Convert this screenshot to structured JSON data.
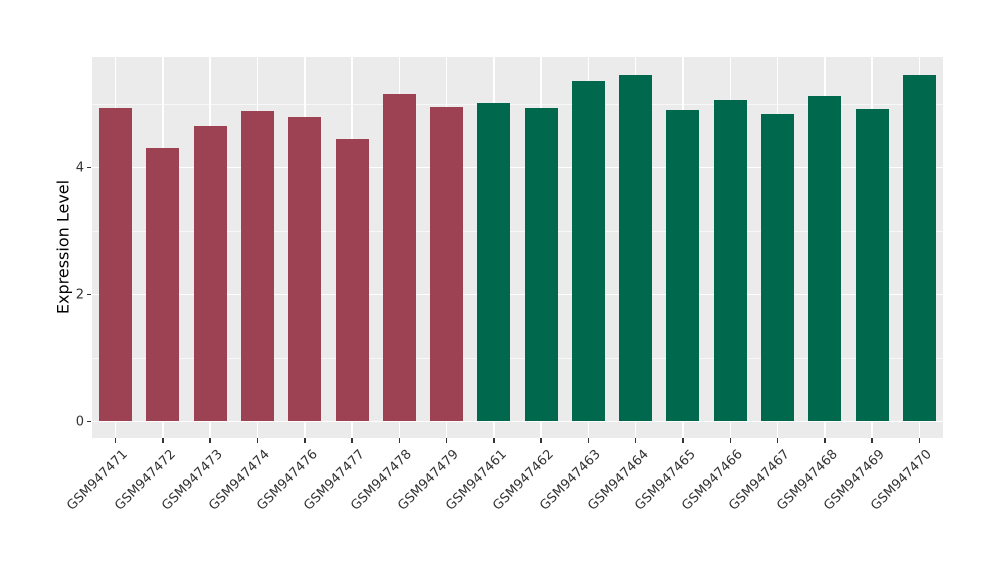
{
  "chart_data": {
    "type": "bar",
    "title": "",
    "xlabel": "",
    "ylabel": "Expression Level",
    "categories": [
      "GSM947471",
      "GSM947472",
      "GSM947473",
      "GSM947474",
      "GSM947476",
      "GSM947477",
      "GSM947478",
      "GSM947479",
      "GSM947461",
      "GSM947462",
      "GSM947463",
      "GSM947464",
      "GSM947465",
      "GSM947466",
      "GSM947467",
      "GSM947468",
      "GSM947469",
      "GSM947470"
    ],
    "values": [
      4.93,
      4.3,
      4.65,
      4.89,
      4.8,
      4.45,
      5.16,
      4.96,
      5.02,
      4.93,
      5.36,
      5.45,
      4.91,
      5.06,
      4.84,
      5.13,
      4.92,
      5.46
    ],
    "bar_colors": [
      "#9D4252",
      "#9D4252",
      "#9D4252",
      "#9D4252",
      "#9D4252",
      "#9D4252",
      "#9D4252",
      "#9D4252",
      "#00684D",
      "#00684D",
      "#00684D",
      "#00684D",
      "#00684D",
      "#00684D",
      "#00684D",
      "#00684D",
      "#00684D",
      "#00684D"
    ],
    "groups": [
      {
        "name": "red-group",
        "color": "#9D4252",
        "count": 8
      },
      {
        "name": "green-group",
        "color": "#00684D",
        "count": 10
      }
    ],
    "ylim": [
      0,
      5.73
    ],
    "yticks": [
      0,
      2,
      4
    ],
    "ytick_labels": [
      "0",
      "2",
      "4"
    ],
    "minor_gridlines": [
      1,
      3,
      5
    ],
    "grid": true,
    "legend_position": "none",
    "panel_background": "#EBEBEB",
    "gridline_color": "#FFFFFF",
    "x_label_rotation_deg": 45
  }
}
